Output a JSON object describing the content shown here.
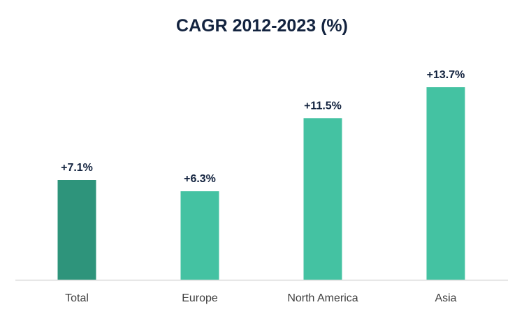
{
  "chart_data": {
    "type": "bar",
    "title": "CAGR 2012-2023 (%)",
    "categories": [
      "Total",
      "Europe",
      "North America",
      "Asia"
    ],
    "values": [
      7.1,
      6.3,
      11.5,
      13.7
    ],
    "value_labels": [
      "+7.1%",
      "+6.3%",
      "+11.5%",
      "+13.7%"
    ],
    "xlabel": "",
    "ylabel": "",
    "ylim": [
      0,
      15
    ],
    "grid": false,
    "legend": "none",
    "bar_colors": [
      "#2e947b",
      "#44c2a2",
      "#44c2a2",
      "#44c2a2"
    ],
    "title_color": "#13233f",
    "axis_color": "#d9d9d9"
  }
}
